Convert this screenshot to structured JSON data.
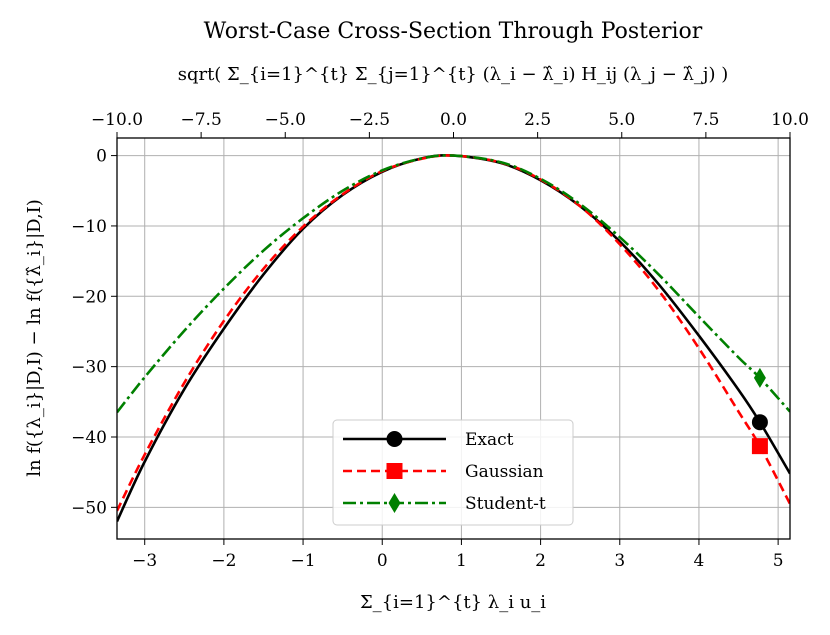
{
  "chart_data": {
    "type": "line",
    "title": "Worst-Case Cross-Section Through Posterior",
    "top_xlabel": "sqrt( Σ_{i=1}^{t} Σ_{j=1}^{t} (λ_i − λ̂_i) H_ij (λ_j − λ̂_j) )",
    "xlabel": "Σ_{i=1}^{t} λ_i u_i",
    "ylabel": "ln f({λ_i}|D,I) − ln f({λ̂_i}|D,I)",
    "xlim": [
      -3.35,
      5.15
    ],
    "ylim": [
      -54.5,
      2.5
    ],
    "top_xlim": [
      -10.0,
      10.0
    ],
    "x_ticks": [
      -3,
      -2,
      -1,
      0,
      1,
      2,
      3,
      4,
      5
    ],
    "x_tick_labels": [
      "−3",
      "−2",
      "−1",
      "0",
      "1",
      "2",
      "3",
      "4",
      "5"
    ],
    "top_ticks": [
      -10.0,
      -7.5,
      -5.0,
      -2.5,
      0.0,
      2.5,
      5.0,
      7.5,
      10.0
    ],
    "top_tick_labels": [
      "−10.0",
      "−7.5",
      "−5.0",
      "−2.5",
      "0.0",
      "2.5",
      "5.0",
      "7.5",
      "10.0"
    ],
    "y_ticks": [
      0,
      -10,
      -20,
      -30,
      -40,
      -50
    ],
    "y_tick_labels": [
      "0",
      "−10",
      "−20",
      "−30",
      "−40",
      "−50"
    ],
    "grid": true,
    "legend_position": "lower-center",
    "peak_x": 0.9,
    "series": [
      {
        "name": "Exact",
        "color": "#000000",
        "style": "solid",
        "marker": "circle",
        "x": [
          -3.35,
          -3.0,
          -2.5,
          -2.0,
          -1.5,
          -1.0,
          -0.5,
          0.0,
          0.5,
          0.9,
          1.5,
          2.0,
          2.5,
          3.0,
          3.5,
          4.0,
          4.5,
          4.77,
          5.15
        ],
        "y": [
          -52.0,
          -43.5,
          -33.2,
          -24.6,
          -16.9,
          -10.4,
          -5.6,
          -2.3,
          -0.4,
          0.0,
          -1.05,
          -3.5,
          -7.2,
          -12.2,
          -18.4,
          -25.6,
          -33.3,
          -37.9,
          -45.2
        ],
        "marker_point": {
          "x": 4.77,
          "y": -37.9
        }
      },
      {
        "name": "Gaussian",
        "color": "#ff0000",
        "style": "dashed",
        "marker": "square",
        "x": [
          -3.35,
          -3.0,
          -2.5,
          -2.0,
          -1.5,
          -1.0,
          -0.5,
          0.0,
          0.5,
          0.9,
          1.5,
          2.0,
          2.5,
          3.0,
          3.5,
          4.0,
          4.5,
          4.77,
          5.15
        ],
        "y": [
          -50.5,
          -42.5,
          -32.3,
          -23.5,
          -16.1,
          -10.1,
          -5.5,
          -2.2,
          -0.45,
          0.0,
          -1.0,
          -3.4,
          -7.2,
          -12.6,
          -19.3,
          -27.4,
          -36.4,
          -41.3,
          -49.5
        ],
        "marker_point": {
          "x": 4.77,
          "y": -41.3
        }
      },
      {
        "name": "Student-t",
        "color": "#008000",
        "style": "dashdot",
        "marker": "diamond",
        "x": [
          -3.35,
          -3.0,
          -2.5,
          -2.0,
          -1.5,
          -1.0,
          -0.5,
          0.0,
          0.5,
          0.9,
          1.5,
          2.0,
          2.5,
          3.0,
          3.5,
          4.0,
          4.5,
          4.77,
          5.15
        ],
        "y": [
          -36.5,
          -31.5,
          -24.9,
          -18.9,
          -13.5,
          -8.9,
          -5.0,
          -2.1,
          -0.4,
          0.0,
          -0.95,
          -3.3,
          -6.9,
          -11.6,
          -17.0,
          -22.9,
          -28.7,
          -31.6,
          -36.4
        ],
        "marker_point": {
          "x": 4.77,
          "y": -31.6
        }
      }
    ]
  }
}
